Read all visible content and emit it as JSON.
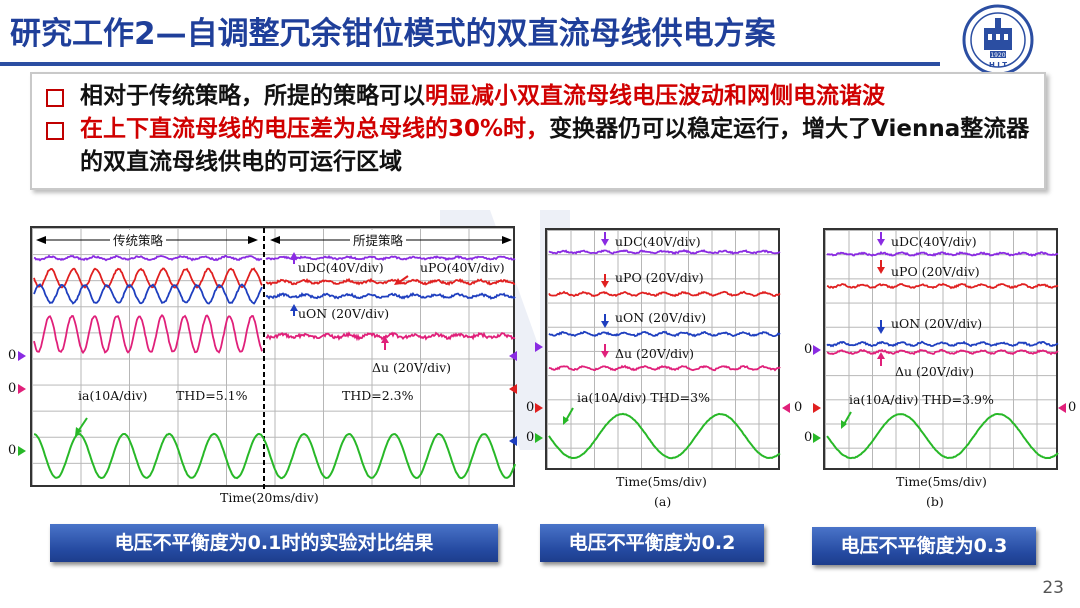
{
  "title": "研究工作2—自调整冗余钳位模式的双直流母线供电方案",
  "bullets": [
    {
      "plain": "相对于传统策略，所提的策略可以",
      "highlight": "明显减小双直流母线电压波动和网侧电流谐波"
    },
    {
      "highlight": "在上下直流母线的电压差为总母线的30%时，",
      "plain": "变换器仍可以稳定运行，增大了Vienna整流器的双直流母线供电的可运行区域"
    }
  ],
  "logo": {
    "year": "1920",
    "letters": "H I T"
  },
  "scope_main": {
    "section_left": "传统策略",
    "section_right": "所提策略",
    "udc": "uDC(40V/div)",
    "upo": "uPO(40V/div)",
    "uon": "uON (20V/div)",
    "du": "Δu (20V/div)",
    "ia": "ia(10A/div)",
    "thd_left": "THD=5.1%",
    "thd_right": "THD=2.3%",
    "xaxis": "Time(20ms/div)",
    "zeros": [
      "0",
      "0",
      "0"
    ]
  },
  "scope_a": {
    "udc": "uDC(40V/div)",
    "upo": "uPO (20V/div)",
    "uon": "uON (20V/div)",
    "du": "Δu (20V/div)",
    "ia": "ia(10A/div) THD=3%",
    "xaxis": "Time(5ms/div)",
    "sub": "(a)",
    "zeros": [
      "0",
      "0",
      "0"
    ]
  },
  "scope_b": {
    "udc": "uDC(40V/div)",
    "upo": "uPO (20V/div)",
    "uon": "uON (20V/div)",
    "du": "Δu (20V/div)",
    "ia": "ia(10A/div) THD=3.9%",
    "xaxis": "Time(5ms/div)",
    "sub": "(b)",
    "zeros": [
      "0",
      "0",
      "0"
    ]
  },
  "captions": [
    "电压不平衡度为0.1时的实验对比结果",
    "电压不平衡度为0.2",
    "电压不平衡度为0.3"
  ],
  "page_number": "23",
  "colors": {
    "title": "#1f3f9a",
    "udc": "#8a2be2",
    "upo": "#e02020",
    "uon": "#1f3fbf",
    "du": "#e0207a",
    "ia": "#28b828",
    "caption": "#2a4fa6"
  }
}
